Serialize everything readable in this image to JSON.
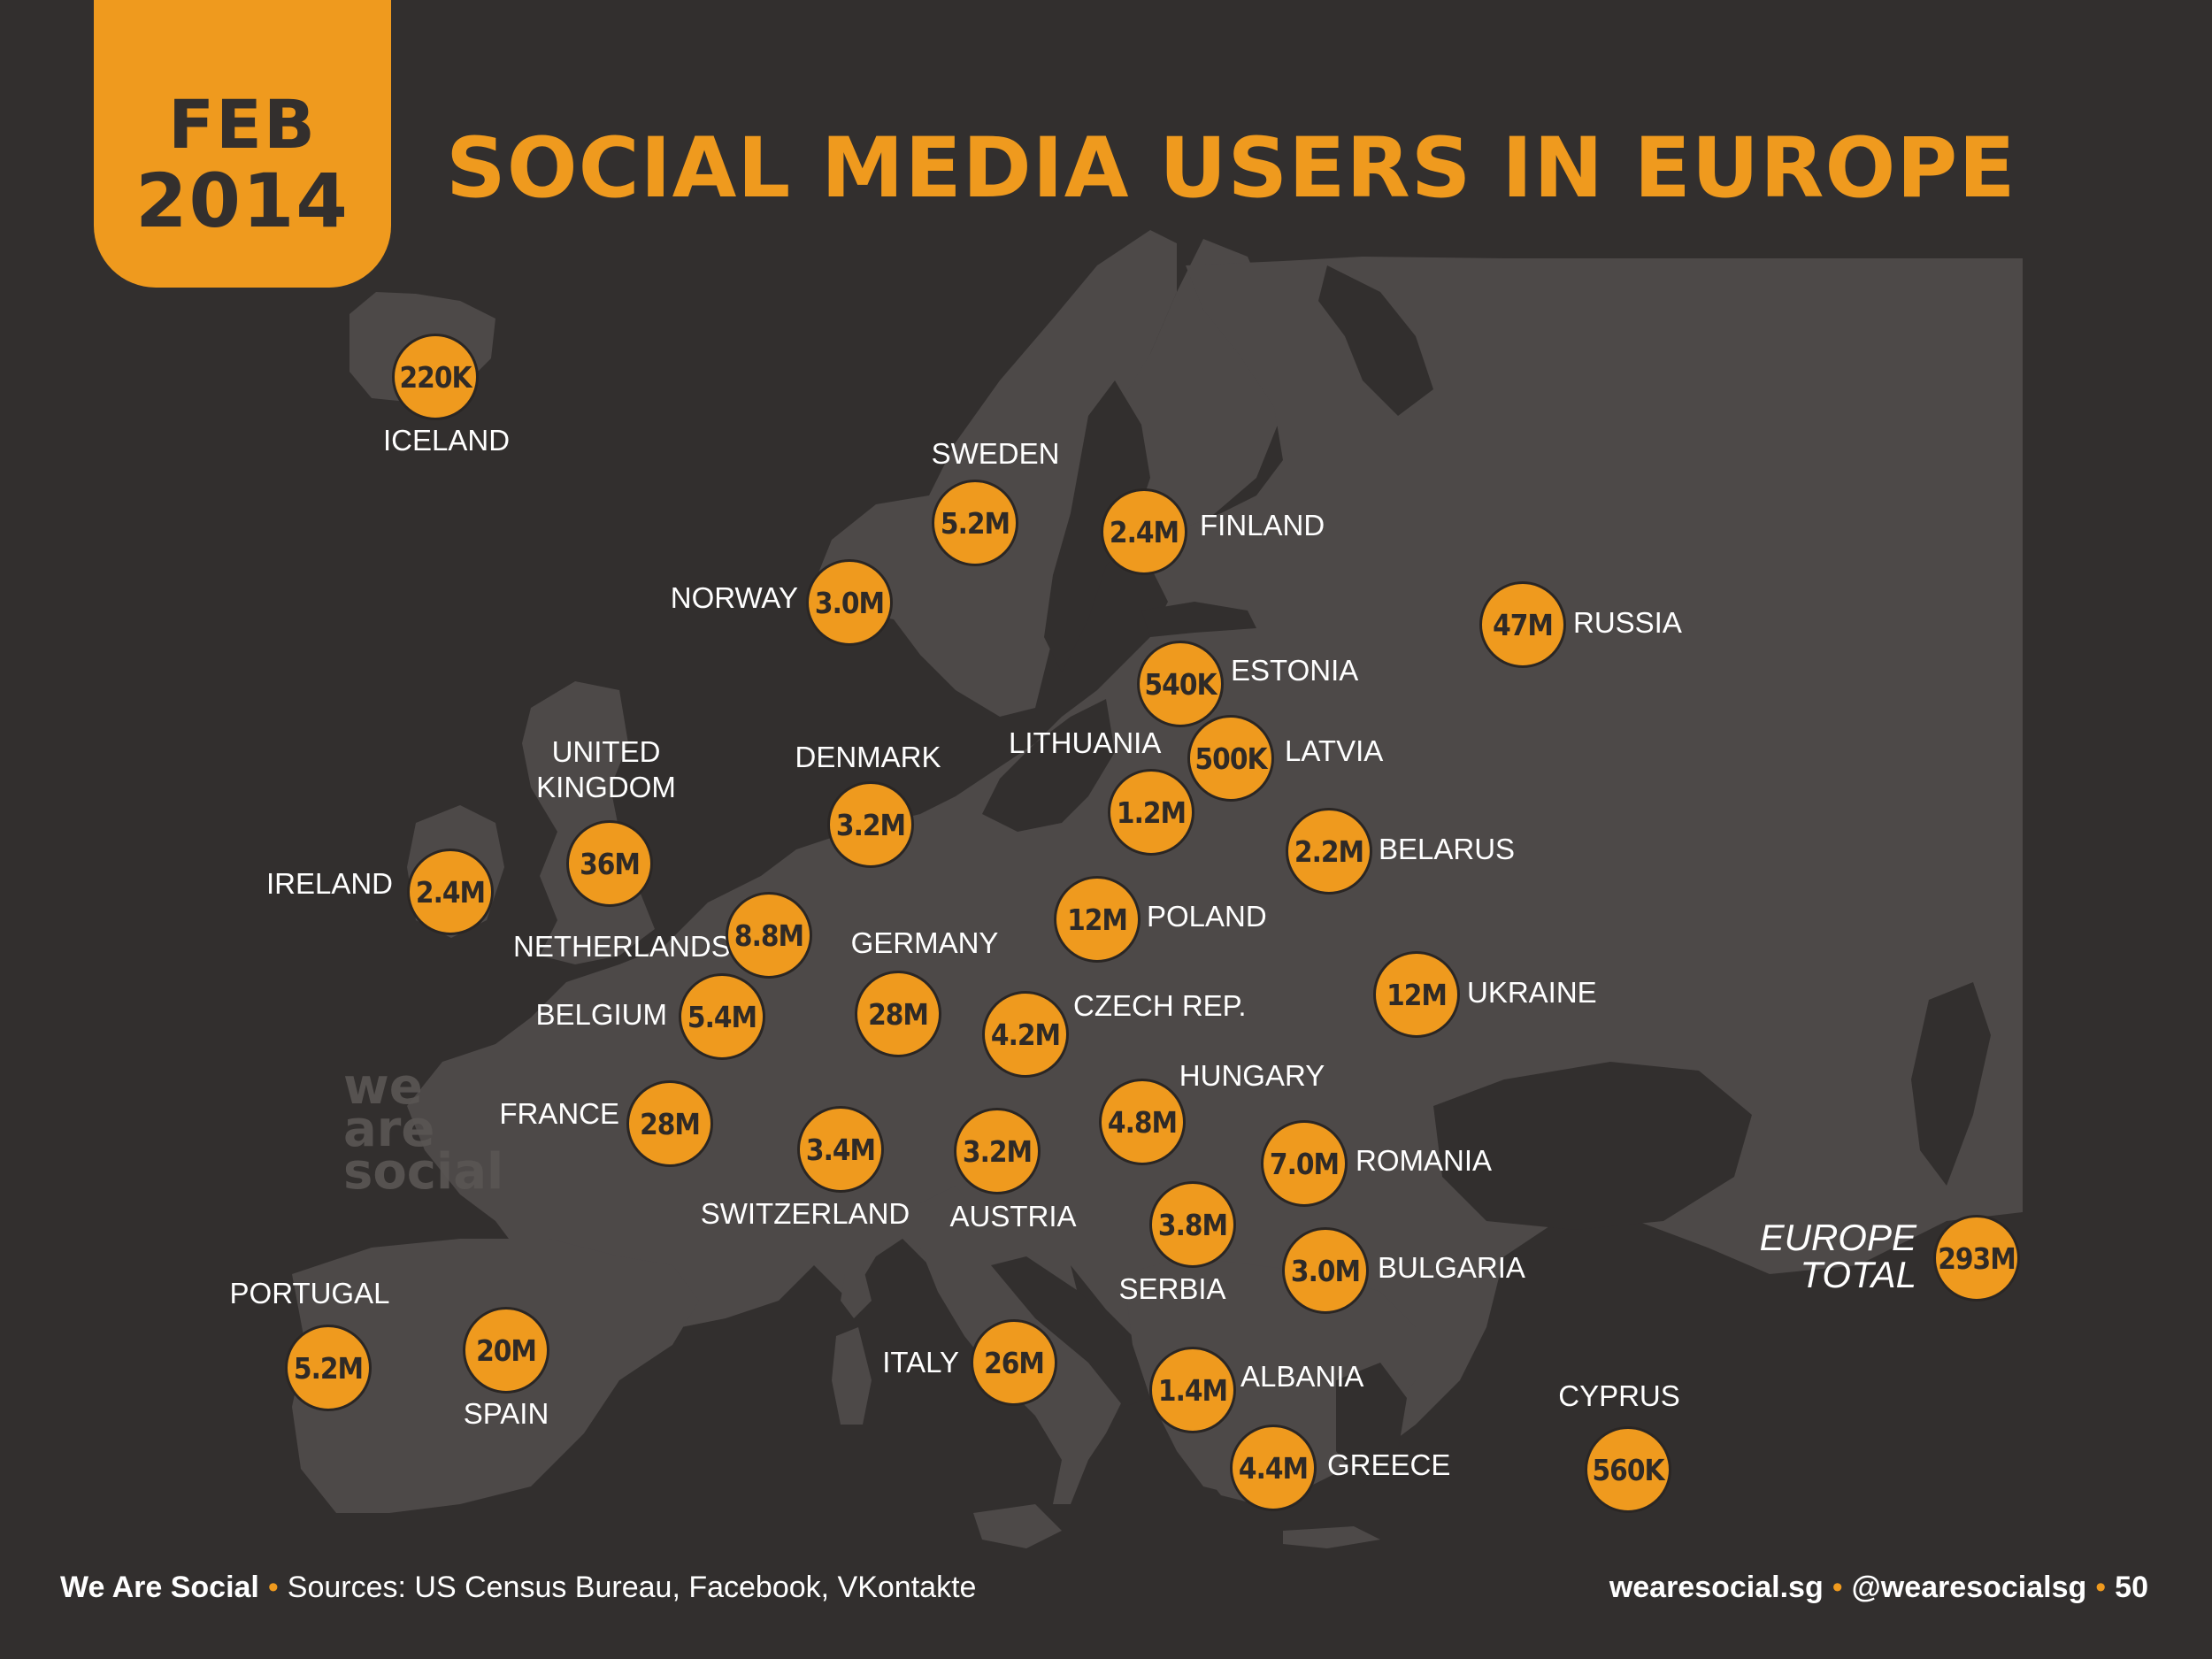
{
  "date": {
    "month": "FEB",
    "year": "2014"
  },
  "title": "SOCIAL MEDIA USERS IN EUROPE",
  "watermark": [
    "we",
    "are",
    "social"
  ],
  "colors": {
    "background": "#322f2e",
    "land": "#4d4948",
    "accent": "#ef9a1e",
    "bubble_text": "#2f2a27",
    "label": "#ffffff"
  },
  "countries": [
    {
      "id": "iceland",
      "name": "ICELAND",
      "value": "220K"
    },
    {
      "id": "sweden",
      "name": "SWEDEN",
      "value": "5.2M"
    },
    {
      "id": "finland",
      "name": "FINLAND",
      "value": "2.4M"
    },
    {
      "id": "norway",
      "name": "NORWAY",
      "value": "3.0M"
    },
    {
      "id": "russia",
      "name": "RUSSIA",
      "value": "47M"
    },
    {
      "id": "estonia",
      "name": "ESTONIA",
      "value": "540K"
    },
    {
      "id": "latvia",
      "name": "LATVIA",
      "value": "500K"
    },
    {
      "id": "lithuania",
      "name": "LITHUANIA",
      "value": "1.2M"
    },
    {
      "id": "uk",
      "name": "UNITED KINGDOM",
      "name_lines": [
        "UNITED",
        "KINGDOM"
      ],
      "value": "36M"
    },
    {
      "id": "denmark",
      "name": "DENMARK",
      "value": "3.2M"
    },
    {
      "id": "belarus",
      "name": "BELARUS",
      "value": "2.2M"
    },
    {
      "id": "ireland",
      "name": "IRELAND",
      "value": "2.4M"
    },
    {
      "id": "poland",
      "name": "POLAND",
      "value": "12M"
    },
    {
      "id": "netherlands",
      "name": "NETHERLANDS",
      "value": "8.8M"
    },
    {
      "id": "germany",
      "name": "GERMANY",
      "value": "28M"
    },
    {
      "id": "ukraine",
      "name": "UKRAINE",
      "value": "12M"
    },
    {
      "id": "belgium",
      "name": "BELGIUM",
      "value": "5.4M"
    },
    {
      "id": "czech",
      "name": "CZECH REP.",
      "value": "4.2M"
    },
    {
      "id": "hungary",
      "name": "HUNGARY",
      "value": "4.8M"
    },
    {
      "id": "france",
      "name": "FRANCE",
      "value": "28M"
    },
    {
      "id": "switzerland",
      "name": "SWITZERLAND",
      "value": "3.4M"
    },
    {
      "id": "austria",
      "name": "AUSTRIA",
      "value": "3.2M"
    },
    {
      "id": "romania",
      "name": "ROMANIA",
      "value": "7.0M"
    },
    {
      "id": "serbia",
      "name": "SERBIA",
      "value": "3.8M"
    },
    {
      "id": "bulgaria",
      "name": "BULGARIA",
      "value": "3.0M"
    },
    {
      "id": "portugal",
      "name": "PORTUGAL",
      "value": "5.2M"
    },
    {
      "id": "spain",
      "name": "SPAIN",
      "value": "20M"
    },
    {
      "id": "italy",
      "name": "ITALY",
      "value": "26M"
    },
    {
      "id": "albania",
      "name": "ALBANIA",
      "value": "1.4M"
    },
    {
      "id": "cyprus",
      "name": "CYPRUS",
      "value": "560K"
    },
    {
      "id": "greece",
      "name": "GREECE",
      "value": "4.4M"
    }
  ],
  "europe_total": {
    "label_lines": [
      "EUROPE",
      "TOTAL"
    ],
    "value": "293M"
  },
  "footer": {
    "brand": "We Are Social",
    "sources": "Sources: US Census Bureau, Facebook, VKontakte",
    "website": "wearesocial.sg",
    "handle": "@wearesocialsg",
    "page": "50",
    "separator": "•"
  }
}
